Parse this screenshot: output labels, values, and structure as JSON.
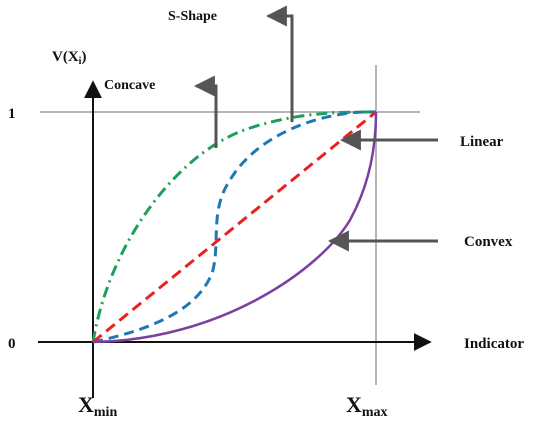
{
  "labels": {
    "y_axis_prefix": "V(X",
    "y_axis_sub": "i",
    "y_axis_suffix": ")",
    "x_axis": "Indicator",
    "y_tick_one": "1",
    "y_tick_zero": "0",
    "x_min_main": "X",
    "x_min_sub": "min",
    "x_max_main": "X",
    "x_max_sub": "max"
  },
  "curves": {
    "concave": {
      "label": "Concave",
      "color": "#1aa05a"
    },
    "s_shape": {
      "label": "S-Shape",
      "color": "#1f78b4"
    },
    "linear": {
      "label": "Linear",
      "color": "#e8231f"
    },
    "convex": {
      "label": "Convex",
      "color": "#7b3fa0"
    }
  },
  "colors": {
    "axis": "#111111",
    "guide": "#b5b5b5",
    "pointer": "#555555"
  }
}
